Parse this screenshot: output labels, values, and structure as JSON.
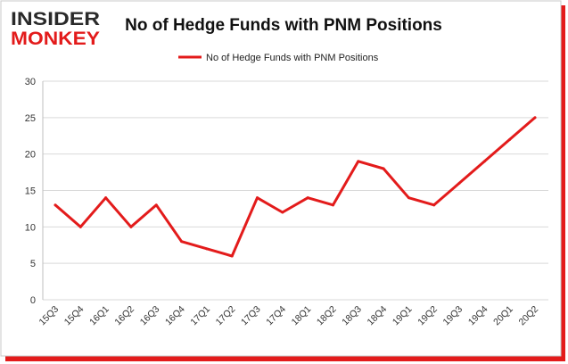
{
  "logo": {
    "line1": "INSIDER",
    "line2": "MONKEY"
  },
  "colors": {
    "series": "#e31b1b",
    "logo_dark": "#2a2a2a",
    "logo_red": "#e31b1b",
    "grid": "#d9d9d9",
    "axis_text": "#333333",
    "shadow": "#e31b1b"
  },
  "chart_data": {
    "type": "line",
    "title": "No of Hedge Funds with PNM Positions",
    "xlabel": "",
    "ylabel": "",
    "ylim": [
      0,
      30
    ],
    "yticks": [
      0,
      5,
      10,
      15,
      20,
      25,
      30
    ],
    "grid": true,
    "legend_position": "top-center",
    "categories": [
      "15Q3",
      "15Q4",
      "16Q1",
      "16Q2",
      "16Q3",
      "16Q4",
      "17Q1",
      "17Q2",
      "17Q3",
      "17Q4",
      "18Q1",
      "18Q2",
      "18Q3",
      "18Q4",
      "19Q1",
      "19Q2",
      "19Q3",
      "19Q4",
      "20Q1",
      "20Q2"
    ],
    "series": [
      {
        "name": "No of Hedge Funds with PNM Positions",
        "values": [
          13,
          10,
          14,
          10,
          13,
          8,
          7,
          6,
          14,
          12,
          14,
          13,
          19,
          18,
          14,
          13,
          16,
          19,
          22,
          25
        ]
      }
    ]
  }
}
